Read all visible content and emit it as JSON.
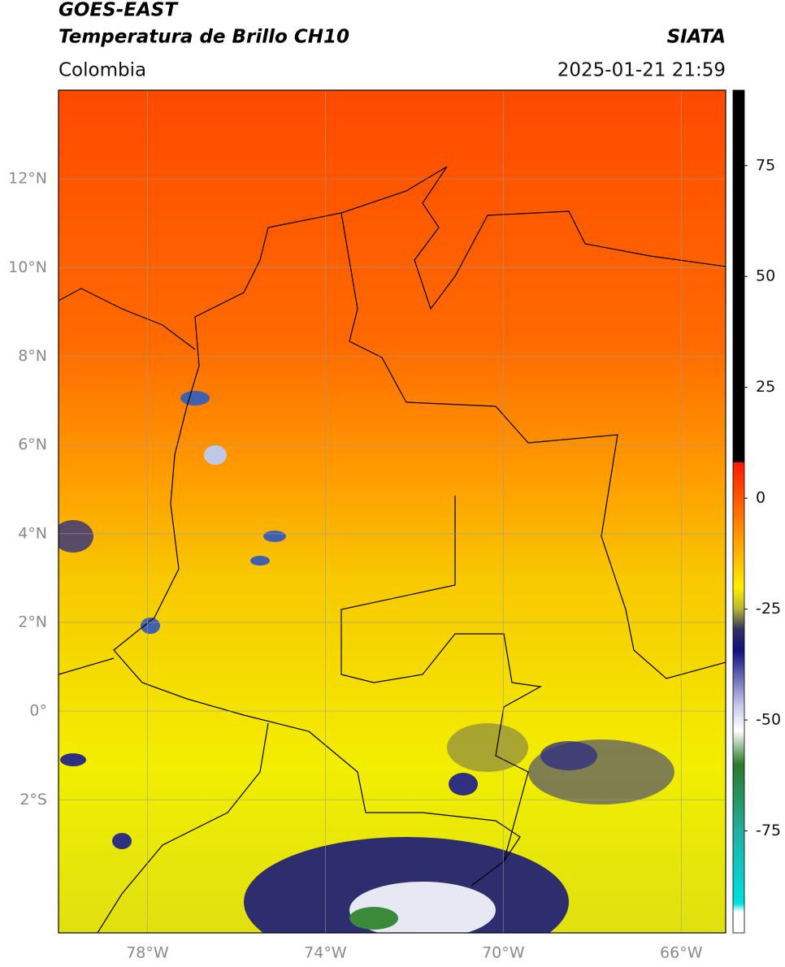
{
  "header": {
    "title": "GOES-EAST",
    "subtitle": "Temperatura de Brillo CH10",
    "source": "SIATA",
    "region": "Colombia",
    "datetime": "2025-01-21 21:59"
  },
  "map": {
    "xlim": [
      -80,
      -65
    ],
    "ylim": [
      -5,
      14
    ],
    "xticks": [
      {
        "value": -78,
        "label": "78°W"
      },
      {
        "value": -74,
        "label": "74°W"
      },
      {
        "value": -70,
        "label": "70°W"
      },
      {
        "value": -66,
        "label": "66°W"
      }
    ],
    "yticks": [
      {
        "value": 12,
        "label": "12°N"
      },
      {
        "value": 10,
        "label": "10°N"
      },
      {
        "value": 8,
        "label": "8°N"
      },
      {
        "value": 6,
        "label": "6°N"
      },
      {
        "value": 4,
        "label": "4°N"
      },
      {
        "value": 2,
        "label": "2°N"
      },
      {
        "value": 0,
        "label": "0°"
      },
      {
        "value": -2,
        "label": "2°S"
      }
    ],
    "grid": true
  },
  "colorbar": {
    "lim": [
      -98,
      92
    ],
    "ticks": [
      75,
      50,
      25,
      0,
      -25,
      -50,
      -75
    ]
  }
}
